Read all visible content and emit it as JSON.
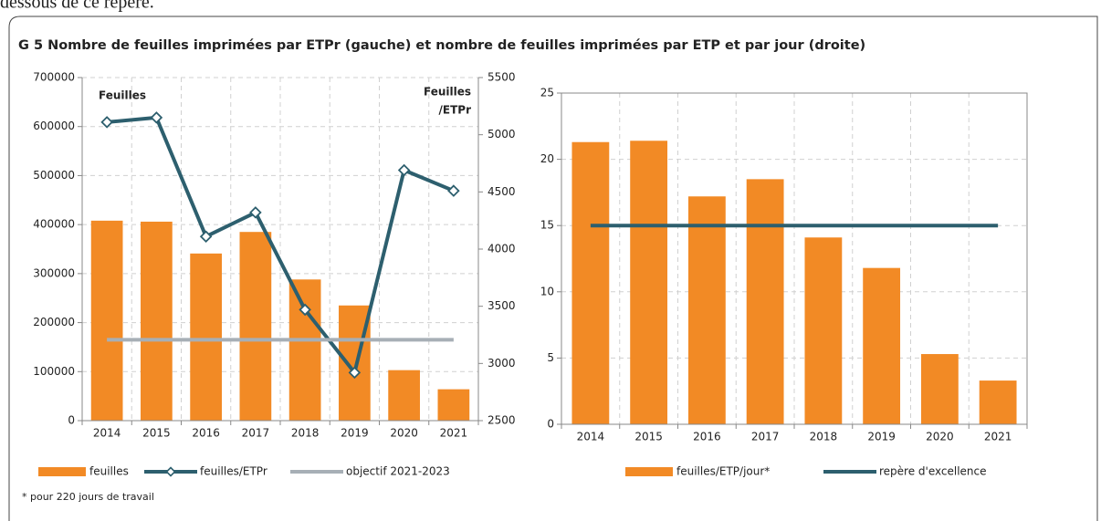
{
  "page_text": "dessous de ce repère.",
  "figure_title": "G 5 Nombre de feuilles imprimées par ETPr (gauche) et nombre de feuilles imprimées par ETP et par jour (droite)",
  "footnote": "* pour 220 jours de travail",
  "chart_data": [
    {
      "type": "combo",
      "categories": [
        "2014",
        "2015",
        "2016",
        "2017",
        "2018",
        "2019",
        "2020",
        "2021"
      ],
      "y_label": "Feuilles",
      "y2_label": [
        "Feuilles",
        "/ETPr"
      ],
      "ylim": [
        0,
        700000
      ],
      "yticks": [
        0,
        100000,
        200000,
        300000,
        400000,
        500000,
        600000,
        700000
      ],
      "y2lim": [
        2500,
        5500
      ],
      "y2ticks": [
        2500,
        3000,
        3500,
        4000,
        4500,
        5000,
        5500
      ],
      "grid": true,
      "series": [
        {
          "name": "feuilles",
          "kind": "bar",
          "color": "#f28a25",
          "values": [
            408000,
            406000,
            341000,
            385000,
            288000,
            235000,
            103000,
            64000
          ]
        },
        {
          "name": "feuilles/ETPr",
          "kind": "line",
          "marker": "diamond",
          "axis": "y2",
          "color": "#2d5f6e",
          "values": [
            5110,
            5150,
            4110,
            4320,
            3470,
            2920,
            4690,
            4510
          ]
        },
        {
          "name": "objectif 2021-2023",
          "kind": "line",
          "color": "#a7afb6",
          "values": [
            165000,
            165000,
            165000,
            165000,
            165000,
            165000,
            165000,
            165000
          ]
        }
      ]
    },
    {
      "type": "combo",
      "categories": [
        "2014",
        "2015",
        "2016",
        "2017",
        "2018",
        "2019",
        "2020",
        "2021"
      ],
      "ylim": [
        0,
        25
      ],
      "yticks": [
        0,
        5,
        10,
        15,
        20,
        25
      ],
      "grid": true,
      "series": [
        {
          "name": "feuilles/ETP/jour*",
          "kind": "bar",
          "color": "#f28a25",
          "values": [
            21.3,
            21.4,
            17.2,
            18.5,
            14.1,
            11.8,
            5.3,
            3.3
          ]
        },
        {
          "name": "repère d'excellence",
          "kind": "line",
          "color": "#2d5f6e",
          "values": [
            15,
            15,
            15,
            15,
            15,
            15,
            15,
            15
          ]
        }
      ]
    }
  ]
}
